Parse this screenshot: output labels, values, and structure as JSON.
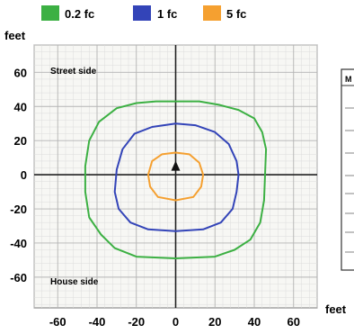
{
  "chart_data": {
    "type": "line",
    "xlabel": "feet",
    "ylabel": "feet",
    "xlim": [
      -72,
      72
    ],
    "ylim": [
      -78,
      76
    ],
    "x_ticks": [
      -60,
      -40,
      -20,
      0,
      20,
      40,
      60
    ],
    "y_ticks": [
      60,
      40,
      20,
      0,
      -20,
      -40,
      -60
    ],
    "grid": true,
    "legend_position": "top",
    "annotations": [
      {
        "text": "Street side",
        "x": -66,
        "y": 61
      },
      {
        "text": "House side",
        "x": -66,
        "y": -56
      }
    ],
    "fixture": {
      "x": 0,
      "y": 5,
      "marker": "triangle"
    },
    "series": [
      {
        "name": "0.2 fc",
        "color": "#3cb043",
        "points": [
          [
            0,
            43
          ],
          [
            12,
            43
          ],
          [
            22,
            41
          ],
          [
            32,
            38
          ],
          [
            40,
            33
          ],
          [
            44,
            25
          ],
          [
            46,
            15
          ],
          [
            45.5,
            0
          ],
          [
            45,
            -15
          ],
          [
            43,
            -28
          ],
          [
            38,
            -38
          ],
          [
            30,
            -44
          ],
          [
            20,
            -48
          ],
          [
            0,
            -49
          ],
          [
            -20,
            -48
          ],
          [
            -31,
            -43
          ],
          [
            -38,
            -35
          ],
          [
            -44,
            -25
          ],
          [
            -46,
            -10
          ],
          [
            -46,
            5
          ],
          [
            -44,
            20
          ],
          [
            -39,
            31
          ],
          [
            -30,
            39
          ],
          [
            -20,
            42
          ],
          [
            -10,
            43
          ],
          [
            0,
            43
          ]
        ]
      },
      {
        "name": "1 fc",
        "color": "#3344b8",
        "points": [
          [
            0,
            30
          ],
          [
            10,
            29
          ],
          [
            20,
            25
          ],
          [
            27,
            18
          ],
          [
            31,
            8
          ],
          [
            32,
            0
          ],
          [
            31,
            -10
          ],
          [
            29,
            -20
          ],
          [
            23,
            -28
          ],
          [
            14,
            -32
          ],
          [
            0,
            -33
          ],
          [
            -14,
            -32
          ],
          [
            -23,
            -28
          ],
          [
            -29,
            -20
          ],
          [
            -31,
            -10
          ],
          [
            -30,
            3
          ],
          [
            -27,
            15
          ],
          [
            -21,
            24
          ],
          [
            -12,
            28
          ],
          [
            0,
            30
          ]
        ]
      },
      {
        "name": "5 fc",
        "color": "#f5a030",
        "points": [
          [
            0,
            13
          ],
          [
            7,
            12
          ],
          [
            12,
            7
          ],
          [
            14,
            0
          ],
          [
            13,
            -7
          ],
          [
            9,
            -13
          ],
          [
            0,
            -15
          ],
          [
            -9,
            -13
          ],
          [
            -13,
            -7
          ],
          [
            -14,
            0
          ],
          [
            -12,
            8
          ],
          [
            -7,
            12
          ],
          [
            0,
            13
          ]
        ]
      }
    ]
  },
  "side_table": {
    "header_fragment": "M",
    "unit_label": "feet"
  }
}
